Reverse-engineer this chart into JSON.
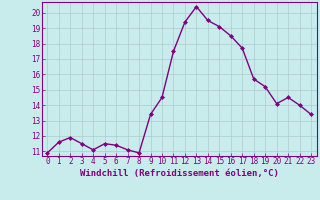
{
  "x": [
    0,
    1,
    2,
    3,
    4,
    5,
    6,
    7,
    8,
    9,
    10,
    11,
    12,
    13,
    14,
    15,
    16,
    17,
    18,
    19,
    20,
    21,
    22,
    23
  ],
  "y": [
    10.9,
    11.6,
    11.9,
    11.5,
    11.1,
    11.5,
    11.4,
    11.1,
    10.9,
    13.4,
    14.5,
    17.5,
    19.4,
    20.4,
    19.5,
    19.1,
    18.5,
    17.7,
    15.7,
    15.2,
    14.1,
    14.5,
    14.0,
    13.4
  ],
  "line_color": "#800080",
  "marker": "D",
  "marker_size": 2,
  "line_width": 1.0,
  "xlabel": "Windchill (Refroidissement éolien,°C)",
  "xlabel_fontsize": 6.5,
  "ylim": [
    10.7,
    20.7
  ],
  "xlim": [
    -0.5,
    23.5
  ],
  "yticks": [
    11,
    12,
    13,
    14,
    15,
    16,
    17,
    18,
    19,
    20
  ],
  "xticks": [
    0,
    1,
    2,
    3,
    4,
    5,
    6,
    7,
    8,
    9,
    10,
    11,
    12,
    13,
    14,
    15,
    16,
    17,
    18,
    19,
    20,
    21,
    22,
    23
  ],
  "tick_fontsize": 5.5,
  "background_color": "#c8ecec",
  "grid_color": "#aacccc",
  "axes_color": "#800080",
  "spine_color": "#800080"
}
